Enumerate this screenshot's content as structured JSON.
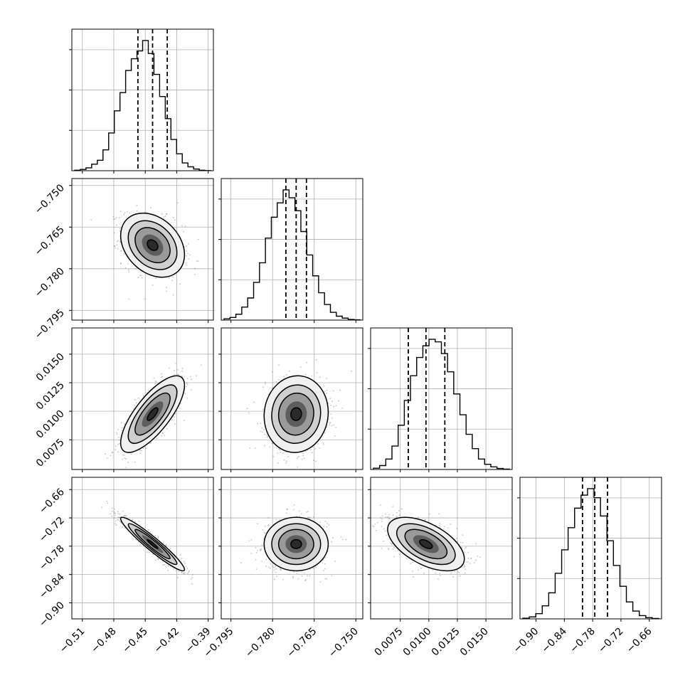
{
  "chart_data": {
    "type": "corner",
    "title": "",
    "grid": true,
    "legend": "none",
    "colors": {
      "ink": "#000000",
      "grid": "#b0b0b0",
      "axes": "#000000",
      "background": "#ffffff"
    },
    "parameters": [
      {
        "median": -0.443,
        "quantiles": [
          -0.457,
          -0.443,
          -0.429
        ],
        "xlim": [
          -0.52,
          -0.385
        ],
        "ticks": [
          -0.51,
          -0.48,
          -0.45,
          -0.42,
          -0.39
        ],
        "tick_labels": [
          "−0.51",
          "−0.48",
          "−0.45",
          "−0.42",
          "−0.39"
        ],
        "hist": [
          0.004,
          0.01,
          0.022,
          0.05,
          0.08,
          0.16,
          0.29,
          0.46,
          0.6,
          0.77,
          0.86,
          0.92,
          1.0,
          0.9,
          0.74,
          0.57,
          0.4,
          0.24,
          0.13,
          0.06,
          0.03,
          0.013,
          0.004,
          0.001
        ]
      },
      {
        "median": -0.7715,
        "quantiles": [
          -0.7752,
          -0.7715,
          -0.7678
        ],
        "xlim": [
          -0.7985,
          -0.7475
        ],
        "ticks": [
          -0.795,
          -0.78,
          -0.765,
          -0.75
        ],
        "tick_labels": [
          "−0.795",
          "−0.780",
          "−0.765",
          "−0.750"
        ],
        "hist": [
          0.01,
          0.02,
          0.045,
          0.1,
          0.17,
          0.29,
          0.44,
          0.63,
          0.79,
          0.9,
          1.0,
          0.94,
          0.84,
          0.68,
          0.5,
          0.34,
          0.21,
          0.12,
          0.06,
          0.03,
          0.015,
          0.005,
          0.002
        ]
      },
      {
        "median": 0.00975,
        "quantiles": [
          0.0082,
          0.00975,
          0.0114
        ],
        "xlim": [
          0.0049,
          0.0173
        ],
        "ticks": [
          0.0075,
          0.01,
          0.0125,
          0.015
        ],
        "tick_labels": [
          "0.0075",
          "0.0100",
          "0.0125",
          "0.0150"
        ],
        "hist": [
          0.01,
          0.03,
          0.08,
          0.18,
          0.34,
          0.53,
          0.72,
          0.86,
          0.95,
          1.0,
          0.98,
          0.89,
          0.75,
          0.58,
          0.42,
          0.27,
          0.16,
          0.08,
          0.04,
          0.02,
          0.008,
          0.003
        ]
      },
      {
        "median": -0.7755,
        "quantiles": [
          -0.8015,
          -0.7755,
          -0.7485
        ],
        "xlim": [
          -0.934,
          -0.634
        ],
        "ticks": [
          -0.9,
          -0.84,
          -0.78,
          -0.72,
          -0.66
        ],
        "tick_labels": [
          "−0.90",
          "−0.84",
          "−0.78",
          "−0.72",
          "−0.66"
        ],
        "hist": [
          0.005,
          0.015,
          0.04,
          0.1,
          0.2,
          0.35,
          0.53,
          0.7,
          0.85,
          0.95,
          1.0,
          0.93,
          0.79,
          0.6,
          0.41,
          0.25,
          0.13,
          0.06,
          0.025,
          0.009,
          0.003
        ]
      }
    ],
    "pairs": [
      {
        "x": 0,
        "y": 1,
        "mean": [
          -0.443,
          -0.7715
        ],
        "sd": [
          0.0145,
          0.0055
        ],
        "corr": -0.3
      },
      {
        "x": 0,
        "y": 2,
        "mean": [
          -0.443,
          0.00975
        ],
        "sd": [
          0.0145,
          0.0016
        ],
        "corr": 0.75
      },
      {
        "x": 1,
        "y": 2,
        "mean": [
          -0.7715,
          0.00975
        ],
        "sd": [
          0.0055,
          0.0016
        ],
        "corr": 0.05
      },
      {
        "x": 0,
        "y": 3,
        "mean": [
          -0.443,
          -0.7755
        ],
        "sd": [
          0.0145,
          0.027
        ],
        "corr": -0.95
      },
      {
        "x": 1,
        "y": 3,
        "mean": [
          -0.7715,
          -0.7755
        ],
        "sd": [
          0.0055,
          0.027
        ],
        "corr": 0.0
      },
      {
        "x": 2,
        "y": 3,
        "mean": [
          0.00975,
          -0.7755
        ],
        "sd": [
          0.0016,
          0.027
        ],
        "corr": -0.55
      }
    ]
  }
}
